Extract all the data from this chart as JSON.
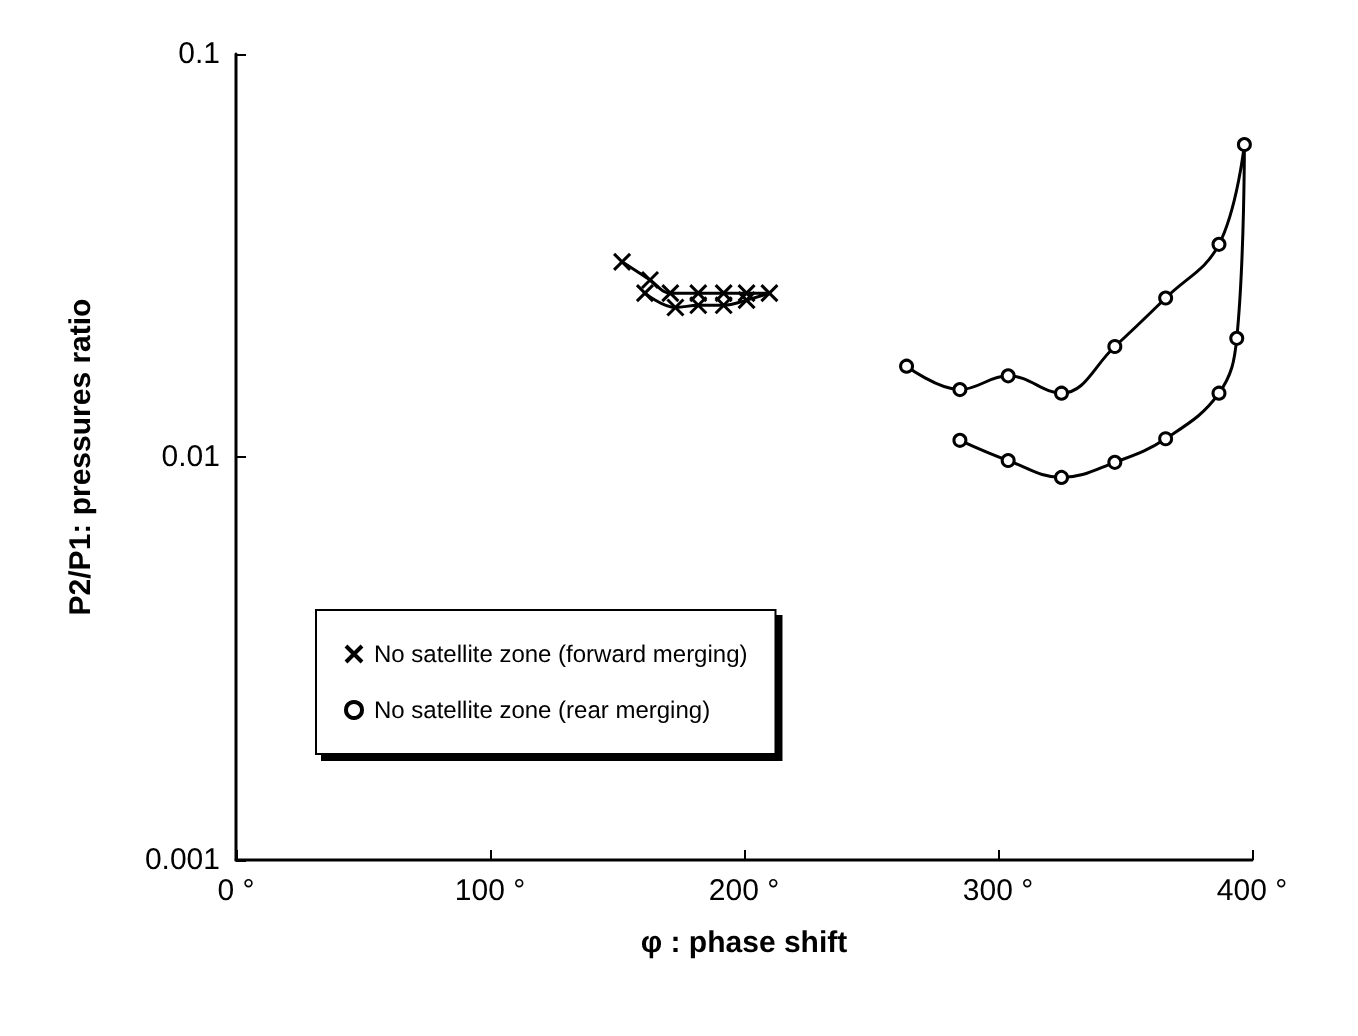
{
  "chart_data": {
    "type": "line",
    "xlabel": "φ : phase shift",
    "ylabel": "P2/P1: pressures ratio",
    "xlim": [
      0,
      400
    ],
    "xticks": [
      {
        "value": 0,
        "label": "0 °"
      },
      {
        "value": 100,
        "label": "100 °"
      },
      {
        "value": 200,
        "label": "200 °"
      },
      {
        "value": 300,
        "label": "300 °"
      },
      {
        "value": 400,
        "label": "400 °"
      }
    ],
    "ylim": [
      0.001,
      0.1
    ],
    "yticks": [
      0.001,
      0.01,
      0.1
    ],
    "log": "y",
    "grid": false,
    "legend": "left",
    "series": [
      {
        "name": "No satellite zone (forward merging)",
        "color": "#000000",
        "marker": "cross",
        "x": [
          152,
          163,
          171,
          182,
          192,
          201,
          210,
          201,
          192,
          182,
          173,
          161
        ],
        "values": [
          0.0305,
          0.0275,
          0.0255,
          0.0255,
          0.0255,
          0.0255,
          0.0255,
          0.0245,
          0.0238,
          0.0238,
          0.0235,
          0.0255
        ]
      },
      {
        "name": "No satellite zone (rear merging)",
        "color": "#000000",
        "marker": "circle",
        "x": [
          264,
          285,
          304,
          325,
          346,
          366,
          387,
          397,
          394,
          387,
          366,
          346,
          325,
          304,
          285
        ],
        "values": [
          0.0168,
          0.0147,
          0.0159,
          0.0144,
          0.0188,
          0.0248,
          0.0337,
          0.0596,
          0.0197,
          0.0144,
          0.0111,
          0.0097,
          0.0089,
          0.0098,
          0.011
        ]
      }
    ]
  }
}
